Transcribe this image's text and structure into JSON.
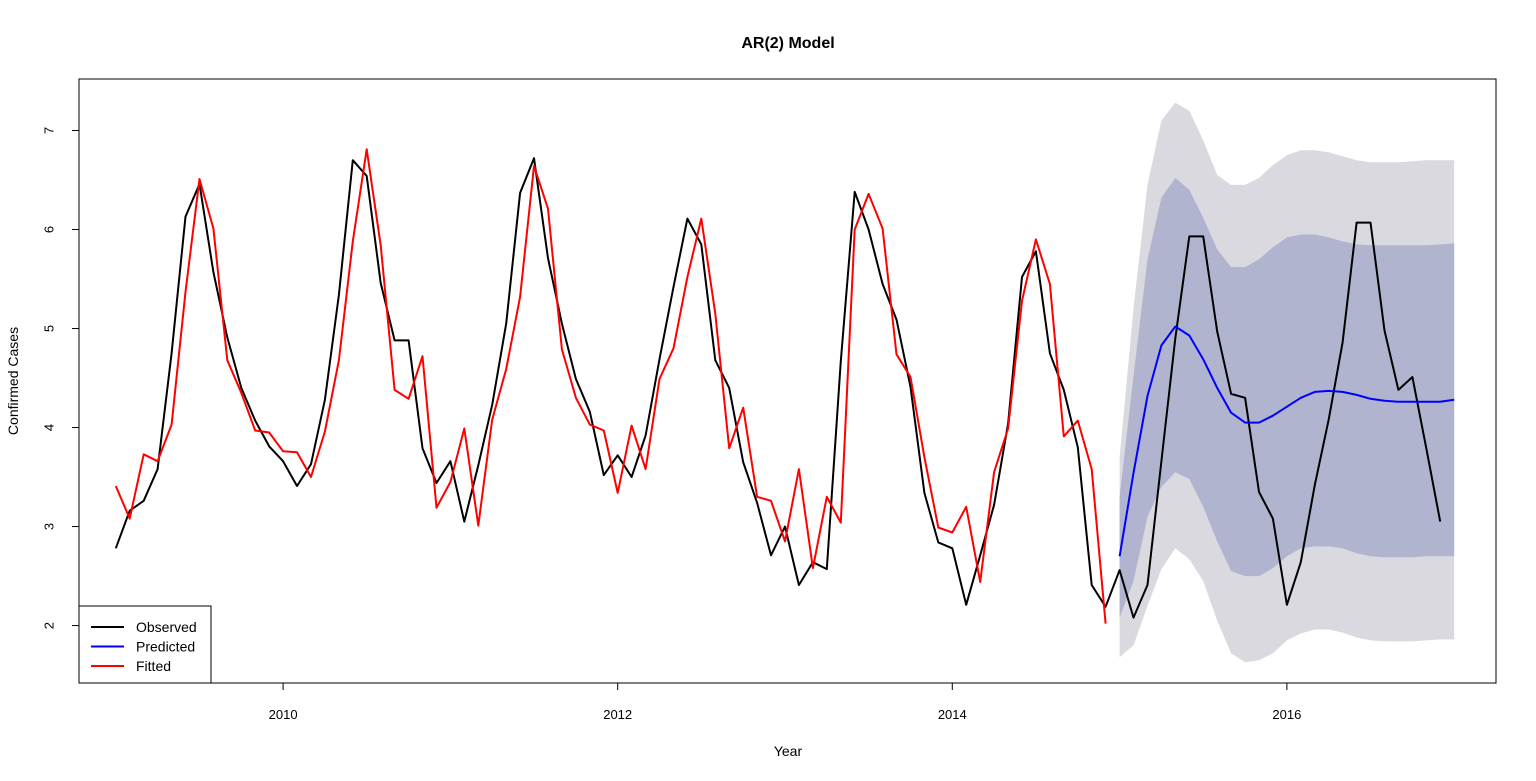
{
  "chart_data": {
    "type": "line",
    "title": "AR(2) Model",
    "xlabel": "Year",
    "ylabel": "Confirmed Cases",
    "xlim": [
      2008.78,
      2017.25
    ],
    "ylim": [
      1.42,
      7.52
    ],
    "x_ticks": [
      2010,
      2012,
      2014,
      2016
    ],
    "y_ticks": [
      2,
      3,
      4,
      5,
      6,
      7
    ],
    "grid": false,
    "legend": {
      "position": "bottom-left",
      "entries": [
        {
          "label": "Observed",
          "color": "#000000"
        },
        {
          "label": "Predicted",
          "color": "#0000ff"
        },
        {
          "label": "Fitted",
          "color": "#ff0000"
        }
      ]
    },
    "observed": {
      "start": 2009.0,
      "step": 0.0833333,
      "color": "#000000",
      "values": [
        2.78,
        3.16,
        3.26,
        3.58,
        4.75,
        6.13,
        6.46,
        5.57,
        4.91,
        4.4,
        4.07,
        3.81,
        3.66,
        3.41,
        3.63,
        4.28,
        5.34,
        6.7,
        6.54,
        5.46,
        4.88,
        4.88,
        3.79,
        3.44,
        3.66,
        3.05,
        3.62,
        4.23,
        5.05,
        6.37,
        6.72,
        5.71,
        5.05,
        4.49,
        4.16,
        3.52,
        3.72,
        3.5,
        3.92,
        4.69,
        5.42,
        6.11,
        5.85,
        4.68,
        4.4,
        3.65,
        3.24,
        2.71,
        3.0,
        2.41,
        2.64,
        2.57,
        4.67,
        6.38,
        6.0,
        5.45,
        5.09,
        4.41,
        3.34,
        2.84,
        2.78,
        2.21,
        2.71,
        3.22,
        4.04,
        5.52,
        5.78,
        4.75,
        4.38,
        3.8,
        2.41,
        2.19,
        2.56,
        2.08,
        2.41,
        3.66,
        4.9,
        5.93,
        5.93,
        4.97,
        4.34,
        4.3,
        3.35,
        3.08,
        2.21,
        2.64,
        3.42,
        4.08,
        4.86,
        6.07,
        6.07,
        4.98,
        4.38,
        4.51,
        3.79,
        3.05
      ]
    },
    "fitted": {
      "start": 2009.0,
      "step": 0.0833333,
      "color": "#ff0000",
      "values": [
        3.41,
        3.08,
        3.73,
        3.66,
        4.03,
        5.37,
        6.51,
        6.01,
        4.68,
        4.35,
        3.97,
        3.95,
        3.76,
        3.75,
        3.5,
        3.96,
        4.68,
        5.88,
        6.81,
        5.84,
        4.38,
        4.29,
        4.72,
        3.19,
        3.45,
        3.99,
        3.01,
        4.08,
        4.59,
        5.32,
        6.64,
        6.21,
        4.79,
        4.3,
        4.03,
        3.97,
        3.34,
        4.02,
        3.58,
        4.49,
        4.8,
        5.52,
        6.11,
        5.15,
        3.79,
        4.2,
        3.3,
        3.26,
        2.85,
        3.58,
        2.58,
        3.3,
        3.04,
        6.0,
        6.36,
        6.01,
        4.74,
        4.51,
        3.7,
        2.99,
        2.94,
        3.2,
        2.44,
        3.55,
        3.99,
        5.28,
        5.9,
        5.45,
        3.91,
        4.07,
        3.58,
        2.02
      ]
    },
    "predicted": {
      "start": 2015.0,
      "step": 0.0833333,
      "color": "#0000ff",
      "values": [
        2.7,
        3.54,
        4.32,
        4.83,
        5.02,
        4.93,
        4.69,
        4.4,
        4.15,
        4.05,
        4.05,
        4.12,
        4.21,
        4.3,
        4.36,
        4.37,
        4.36,
        4.33,
        4.29,
        4.27,
        4.26,
        4.26,
        4.26,
        4.26,
        4.28
      ]
    },
    "band_95": {
      "color": "#d9d9df",
      "upper": [
        3.7,
        5.2,
        6.45,
        7.1,
        7.28,
        7.2,
        6.9,
        6.55,
        6.45,
        6.45,
        6.52,
        6.65,
        6.75,
        6.8,
        6.8,
        6.78,
        6.74,
        6.7,
        6.68,
        6.68,
        6.68,
        6.69,
        6.7,
        6.7,
        6.7
      ],
      "lower": [
        1.68,
        1.8,
        2.2,
        2.57,
        2.78,
        2.67,
        2.45,
        2.05,
        1.72,
        1.63,
        1.65,
        1.72,
        1.85,
        1.92,
        1.96,
        1.96,
        1.93,
        1.88,
        1.85,
        1.84,
        1.84,
        1.84,
        1.85,
        1.86,
        1.86
      ]
    },
    "band_80": {
      "color": "#b1b4cf",
      "upper": [
        3.3,
        4.52,
        5.7,
        6.32,
        6.52,
        6.4,
        6.12,
        5.8,
        5.62,
        5.62,
        5.7,
        5.82,
        5.92,
        5.95,
        5.95,
        5.92,
        5.88,
        5.85,
        5.84,
        5.84,
        5.84,
        5.84,
        5.84,
        5.85,
        5.86
      ],
      "lower": [
        2.08,
        2.45,
        3.1,
        3.4,
        3.55,
        3.48,
        3.2,
        2.85,
        2.55,
        2.5,
        2.5,
        2.58,
        2.7,
        2.78,
        2.8,
        2.8,
        2.78,
        2.73,
        2.7,
        2.69,
        2.69,
        2.69,
        2.7,
        2.7,
        2.7
      ]
    }
  }
}
